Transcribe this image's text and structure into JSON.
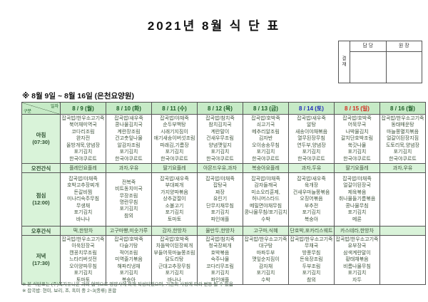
{
  "title": "2021년 8월 식 단 표",
  "approval": {
    "stamp": "결재",
    "col1": "담 당",
    "col2": "원 장"
  },
  "subtitle": "※ 8월 9일 ~ 8월 16일 (은천요양원)",
  "colors": {
    "header_bg": "#c6eac6",
    "label_bg": "#d9f3d9",
    "weekday_text": "#1c5b26",
    "saturday_text": "#1f2bb8",
    "sunday_text": "#d42a1e",
    "menu_text": "#42563f"
  },
  "table": {
    "corner": {
      "top": "일자",
      "bottom": "구분"
    },
    "columns": [
      {
        "label": "8 / 9 (월)",
        "day": "mon"
      },
      {
        "label": "8 / 10 (화)",
        "day": "tue"
      },
      {
        "label": "8 / 11 (수)",
        "day": "wed"
      },
      {
        "label": "8 / 12 (목)",
        "day": "thu"
      },
      {
        "label": "8 / 13 (금)",
        "day": "fri"
      },
      {
        "label": "8 / 14 (토)",
        "day": "sat"
      },
      {
        "label": "8 / 15 (일)",
        "day": "sun"
      },
      {
        "label": "8 / 16 (월)",
        "day": "mon"
      }
    ],
    "rows": [
      {
        "type": "meal",
        "label": "아침",
        "time": "(07:30)",
        "cells": [
          [
            "잡곡밥/한우소고기죽",
            "북어채미역국",
            "코다리조림",
            "완자전",
            "올방개묵,양념장",
            "포기김치",
            "한국야쿠르트"
          ],
          [
            "잡곡밥/새우죽",
            "콩나물김치국",
            "계란장조림",
            "건고춧잎나물",
            "알감자조림",
            "포기김치",
            "한국야쿠르트"
          ],
          [
            "잡곡밥/야채죽",
            "순두부백탕",
            "시래기지짐이",
            "애기새송이버섯조림",
            "파래김,기름장",
            "포기김치",
            "한국야쿠르트"
          ],
          [
            "잡곡밥/참치죽",
            "참치김치국",
            "계란말이",
            "건새우무조림",
            "양념깻잎지",
            "포기김치",
            "한국야쿠르트"
          ],
          [
            "잡곡밥/호박죽",
            "쇠고기국",
            "메추리알조림",
            "김자반",
            "오이송송무침",
            "포기김치",
            "한국야쿠르트"
          ],
          [
            "잡곡밥/새우죽",
            "알탕",
            "새송이야채볶음",
            "열무된장무침",
            "연두부,양념장",
            "포기김치",
            "한국야쿠르트"
          ],
          [
            "잡곡밥/호박죽",
            "어묵무국",
            "나박물김치",
            "갈치단호박조림",
            "쑥갓나물",
            "포기김치",
            "한국야쿠르트"
          ],
          [
            "잡곡밥/한우소고기죽",
            "동태매운탕",
            "마늘쫑멸치볶음",
            "얼갈이된장지짐",
            "도토리묵,양념장",
            "포기김치",
            "한국야쿠르트"
          ]
        ]
      },
      {
        "type": "snack",
        "label": "오전간식",
        "cells": [
          "플레인요플레",
          "과자,우유",
          "딸기요플레",
          "아몬드우유,과자",
          "복숭아요플레",
          "과자,두유",
          "딸기요플레",
          "과자,우유"
        ]
      },
      {
        "type": "meal",
        "label": "점심",
        "time": "(12:00)",
        "cells": [
          [
            "잡곡밥/야채죽",
            "호박고추장찌개",
            "돈갈비찜",
            "미나리숙주무침",
            "무생채",
            "포기김치",
            "바나나"
          ],
          [
            "전복죽",
            "비트동치미국",
            "무장조림",
            "명란무침",
            "포기김치",
            "참외"
          ],
          [
            "잡곡밥/새우죽",
            "부대찌개",
            "가지양파볶음",
            "상추겉절이",
            "소불고기",
            "포기김치",
            "토마토"
          ],
          [
            "잡곡밥/야채죽",
            "잡탕국",
            "짜장",
            "유린기",
            "단무지채무침",
            "포기김치",
            "파인애플"
          ],
          [
            "잡곡밥/야채죽",
            "감자들깨국",
            "미소오리훈제,",
            "허니머스타드",
            "메밀면야채무침",
            "콩나물무침/포기김치",
            "수박"
          ],
          [
            "잡곡밥/새우죽",
            "육개장",
            "건새우마늘쫑볶음",
            "오징어볶음",
            "부추전",
            "포기김치",
            "복숭아"
          ],
          [
            "잡곡밥/야채죽",
            "얼갈이된장국",
            "제육볶음",
            "취나물들기름볶음",
            "콩나물무침",
            "포기김치",
            "메론"
          ],
          []
        ]
      },
      {
        "type": "snack",
        "label": "오후간식",
        "cells": [
          "떡,한방차",
          "고구마빵,미숫가루",
          "감자,한방차",
          "물만두,한방차",
          "고구마,식혜",
          "단호박,포카리스웨트",
          "카스테라,한방차",
          ""
        ]
      },
      {
        "type": "meal",
        "label": "저녁",
        "time": "(17:30)",
        "cells": [
          [
            "잡곡밥/한우소고기죽",
            "아욱된장국",
            "캔꽁치무조림",
            "느타리버섯전",
            "오이양파무침",
            "포기김치",
            "토마토"
          ],
          [
            "잡곡밥/호박죽",
            "다슬기탕",
            "적어조림",
            "미역줄기볶음",
            "해파리냉채",
            "포기김치",
            "복숭아"
          ],
          [
            "잡곡밥/호박죽",
            "차돌박이된장찌개",
            "부들어묵마늘쫑조림",
            "닭도리탕",
            "근대고추장무침",
            "포기김치",
            "바나나"
          ],
          [
            "잡곡밥/참치죽",
            "청국장찌개",
            "호박볶음",
            "숙주나물",
            "코다리무조림",
            "포기김치",
            "파인애플"
          ],
          [
            "잡곡밥/한우소고기죽",
            "대구탕",
            "마파두부",
            "깻잎순지짐이",
            "감자채",
            "포기김치",
            "수박"
          ],
          [
            "잡곡밥/한우소고기죽",
            "무채국",
            "방풍무침",
            "돈육장조림",
            "두부조림",
            "포기김치",
            "참외"
          ],
          [
            "잡곡밥/한우소고기죽",
            "유부장국",
            "삼색계란말이",
            "황태채볶음",
            "비름나물무침",
            "포기김치",
            "자두"
          ],
          []
        ]
      }
    ]
  },
  "footnotes": [
    "※ 본 식단표는 (주)복지유니온 과의 협약으로 영양사에 의해 작성되었으며, 기관의 사정에 따라 변동 될 수 있음",
    "※ 잡곡밥: 현미, 보리, 조, 흑미 중 2~3(종류) 혼합"
  ]
}
